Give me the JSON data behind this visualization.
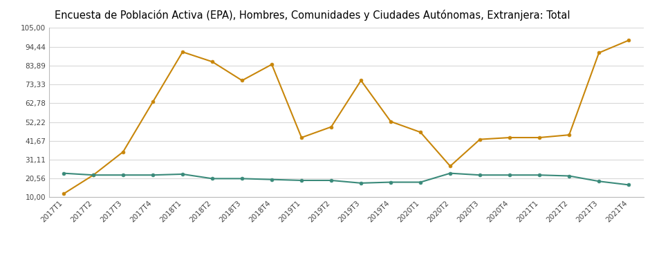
{
  "title": "Encuesta de Población Activa (EPA), Hombres, Comunidades y Ciudades Autónomas, Extranjera: Total",
  "title_bg": "#c5d9e0",
  "title_color": "#000000",
  "title_fontsize": 10.5,
  "x_labels": [
    "2017T1",
    "2017T2",
    "2017T3",
    "2017T4",
    "2018T1",
    "2018T2",
    "2018T3",
    "2018T4",
    "2019T1",
    "2019T2",
    "2019T3",
    "2019T4",
    "2020T1",
    "2020T2",
    "2020T3",
    "2020T4",
    "2021T1",
    "2021T2",
    "2021T3",
    "2021T4"
  ],
  "orange_line": [
    12.0,
    22.5,
    35.5,
    63.5,
    91.5,
    86.0,
    75.5,
    84.5,
    43.5,
    49.5,
    75.5,
    52.5,
    46.5,
    27.5,
    42.5,
    43.5,
    43.5,
    45.0,
    91.0,
    98.0
  ],
  "teal_line": [
    23.5,
    22.5,
    22.5,
    22.5,
    23.0,
    20.5,
    20.5,
    20.0,
    19.5,
    19.5,
    18.0,
    18.5,
    18.5,
    23.5,
    22.5,
    22.5,
    22.5,
    22.0,
    19.0,
    17.0
  ],
  "orange_color": "#c8860a",
  "teal_color": "#3a8a7a",
  "ylim_min": 10.0,
  "ylim_max": 105.0,
  "yticks": [
    10.0,
    20.56,
    31.11,
    41.67,
    52.22,
    62.78,
    73.33,
    83.89,
    94.44,
    105.0
  ],
  "bg_plot": "#ffffff",
  "bg_fig": "#ffffff",
  "grid_color": "#d8d8d8",
  "line_width": 1.5,
  "marker_size": 3.5
}
